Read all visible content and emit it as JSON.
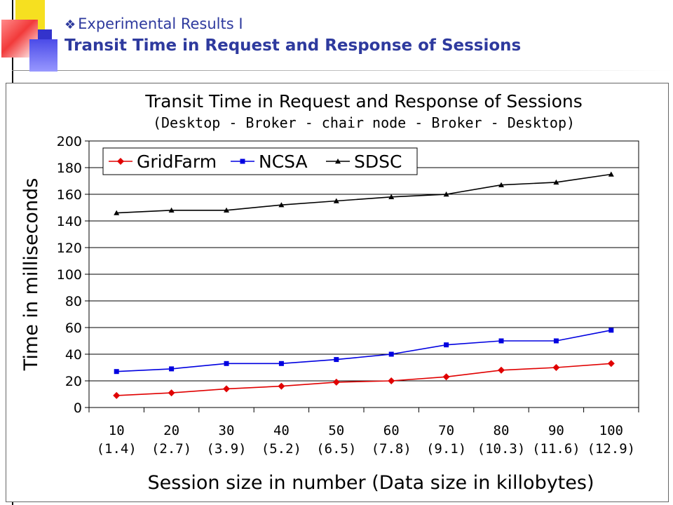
{
  "slide": {
    "bullet_icon": "diamond-bullet-icon",
    "subtitle": "Experimental Results I",
    "title": "Transit Time in Request and Response of Sessions"
  },
  "chart_data": {
    "type": "line",
    "title": "Transit Time in Request and Response of Sessions",
    "subtitle": "(Desktop - Broker - chair node - Broker - Desktop)",
    "xlabel": "Session size in number (Data size in killobytes)",
    "ylabel": "Time in milliseconds",
    "ylim": [
      0,
      200
    ],
    "yticks": [
      0,
      20,
      40,
      60,
      80,
      100,
      120,
      140,
      160,
      180,
      200
    ],
    "grid": true,
    "legend_position": "top-left",
    "x": [
      10,
      20,
      30,
      40,
      50,
      60,
      70,
      80,
      90,
      100
    ],
    "categories": [
      "10",
      "20",
      "30",
      "40",
      "50",
      "60",
      "70",
      "80",
      "90",
      "100"
    ],
    "category_sublabels": [
      "(1.4)",
      "(2.7)",
      "(3.9)",
      "(5.2)",
      "(6.5)",
      "(7.8)",
      "(9.1)",
      "(10.3)",
      "(11.6)",
      "(12.9)"
    ],
    "series": [
      {
        "name": "GridFarm",
        "color": "#e00000",
        "marker": "diamond",
        "values": [
          9,
          11,
          14,
          16,
          19,
          20,
          23,
          28,
          30,
          33
        ]
      },
      {
        "name": "NCSA",
        "color": "#0000e0",
        "marker": "square",
        "values": [
          27,
          29,
          33,
          33,
          36,
          40,
          47,
          50,
          50,
          58
        ]
      },
      {
        "name": "SDSC",
        "color": "#000000",
        "marker": "triangle",
        "values": [
          146,
          148,
          148,
          152,
          155,
          158,
          160,
          167,
          169,
          175
        ]
      }
    ]
  }
}
